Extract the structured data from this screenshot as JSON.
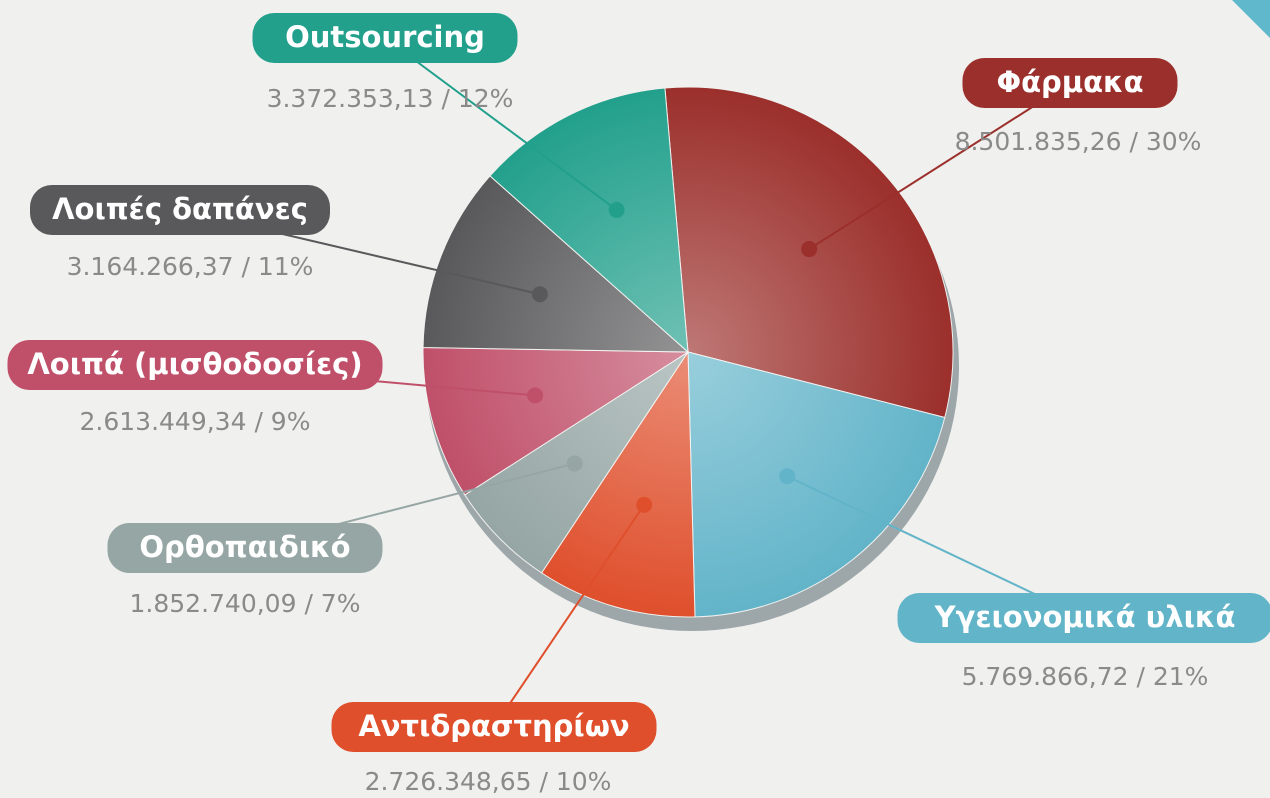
{
  "chart_data": {
    "type": "pie",
    "categories": [
      "Φάρμακα",
      "Υγειονομικά υλικά",
      "Αντιδραστηρίων",
      "Ορθοπαιδικό",
      "Λοιπά (μισθοδοσίες)",
      "Λοιπές δαπάνες",
      "Outsourcing"
    ],
    "values": [
      8501835.26,
      5769866.72,
      2726348.65,
      1852740.09,
      2613449.34,
      3164266.37,
      3372353.13
    ],
    "value_labels": [
      "8.501.835,26 / 30%",
      "5.769.866,72 / 21%",
      "2.726.348,65 / 10%",
      "1.852.740,09 / 7%",
      "2.613.449,34 / 9%",
      "3.164.266,37 / 11%",
      "3.372.353,13 / 12%"
    ],
    "colors": [
      "#9b2f2b",
      "#62b4c9",
      "#df4f2c",
      "#95a6a4",
      "#c0506a",
      "#59595b",
      "#22a08c"
    ]
  }
}
